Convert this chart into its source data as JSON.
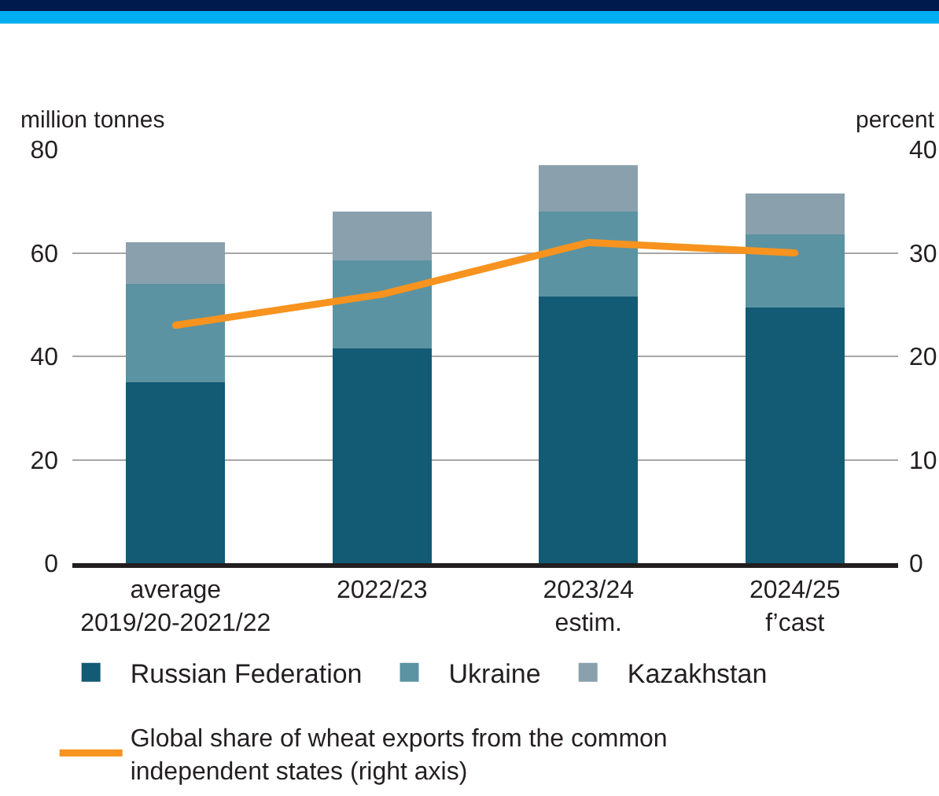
{
  "chart_data": {
    "type": "bar",
    "stacked": true,
    "ylabel": "million tonnes",
    "y2label": "percent",
    "categories": [
      "average\n2019/20-2021/22",
      "2022/23",
      "2023/24\nestim.",
      "2024/25\nf’cast"
    ],
    "series": [
      {
        "name": "Russian Federation",
        "color": "#135a74",
        "values": [
          35,
          41.5,
          51.5,
          49.5
        ]
      },
      {
        "name": "Ukraine",
        "color": "#5b93a2",
        "values": [
          19,
          17,
          16.5,
          14
        ]
      },
      {
        "name": "Kazakhstan",
        "color": "#8aa0ad",
        "values": [
          8,
          9.5,
          9,
          8
        ]
      },
      {
        "name": "Global share of wheat exports from the common independent states (right axis)",
        "type": "line",
        "axis": "y2",
        "color": "#f7931e",
        "values": [
          23,
          26,
          31,
          30
        ]
      }
    ],
    "ylim": [
      0,
      80
    ],
    "yticks": [
      0,
      20,
      40,
      60,
      80
    ],
    "y2lim": [
      0,
      40
    ],
    "y2ticks": [
      0,
      10,
      20,
      30,
      40
    ],
    "grid": "y",
    "legend": "bottom",
    "marker": "none",
    "line_style": "solid"
  }
}
